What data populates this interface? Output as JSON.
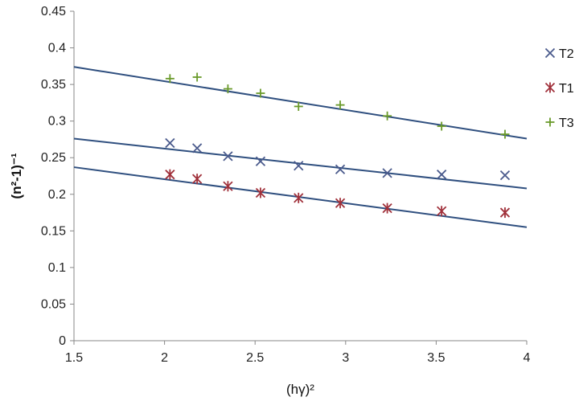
{
  "chart_data": {
    "type": "scatter",
    "title": "",
    "xlabel": "(hγ)²",
    "ylabel": "(n²-1)⁻¹",
    "xlim": [
      1.5,
      4
    ],
    "ylim": [
      0,
      0.45
    ],
    "x_ticks": [
      "1.5",
      "2",
      "2.5",
      "3",
      "3.5",
      "4"
    ],
    "y_ticks": [
      "0",
      "0.05",
      "0.1",
      "0.15",
      "0.2",
      "0.25",
      "0.3",
      "0.35",
      "0.4",
      "0.45"
    ],
    "grid": false,
    "legend_position": "right",
    "x": [
      2.03,
      2.18,
      2.35,
      2.53,
      2.74,
      2.97,
      3.23,
      3.53,
      3.88
    ],
    "series": [
      {
        "name": "T2",
        "marker": "x",
        "color": "#4a5a8c",
        "values": [
          0.27,
          0.263,
          0.252,
          0.245,
          0.239,
          0.234,
          0.229,
          0.227,
          0.226
        ],
        "trendline": [
          [
            1.5,
            0.276
          ],
          [
            4.0,
            0.208
          ]
        ]
      },
      {
        "name": "T1",
        "marker": "star",
        "color": "#a0303a",
        "values": [
          0.227,
          0.221,
          0.211,
          0.202,
          0.195,
          0.188,
          0.181,
          0.177,
          0.175
        ],
        "trendline": [
          [
            1.5,
            0.237
          ],
          [
            4.0,
            0.155
          ]
        ]
      },
      {
        "name": "T3",
        "marker": "plus",
        "color": "#6a9a2a",
        "values": [
          0.358,
          0.36,
          0.344,
          0.338,
          0.32,
          0.322,
          0.307,
          0.293,
          0.282
        ],
        "trendline": [
          [
            1.5,
            0.374
          ],
          [
            4.0,
            0.276
          ]
        ]
      }
    ],
    "trendline_color": "#2f4f7f"
  }
}
